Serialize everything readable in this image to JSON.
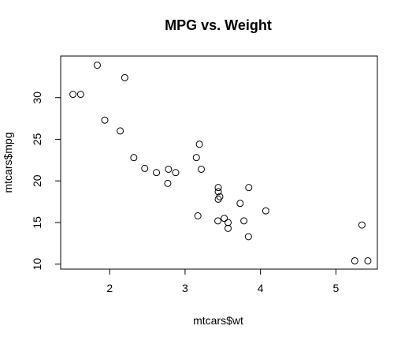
{
  "chart_data": {
    "type": "scatter",
    "title": "MPG vs. Weight",
    "xlabel": "mtcars$wt",
    "ylabel": "mtcars$mpg",
    "xlim": [
      1.35,
      5.55
    ],
    "ylim": [
      9.4,
      35.0
    ],
    "xticks": [
      2,
      3,
      4,
      5
    ],
    "yticks": [
      10,
      15,
      20,
      25,
      30
    ],
    "grid": false,
    "points": [
      {
        "x": 2.62,
        "y": 21.0
      },
      {
        "x": 2.875,
        "y": 21.0
      },
      {
        "x": 2.32,
        "y": 22.8
      },
      {
        "x": 3.215,
        "y": 21.4
      },
      {
        "x": 3.44,
        "y": 18.7
      },
      {
        "x": 3.46,
        "y": 18.1
      },
      {
        "x": 3.57,
        "y": 14.3
      },
      {
        "x": 3.19,
        "y": 24.4
      },
      {
        "x": 3.15,
        "y": 22.8
      },
      {
        "x": 3.44,
        "y": 19.2
      },
      {
        "x": 3.44,
        "y": 17.8
      },
      {
        "x": 4.07,
        "y": 16.4
      },
      {
        "x": 3.73,
        "y": 17.3
      },
      {
        "x": 3.78,
        "y": 15.2
      },
      {
        "x": 5.25,
        "y": 10.4
      },
      {
        "x": 5.424,
        "y": 10.4
      },
      {
        "x": 5.345,
        "y": 14.7
      },
      {
        "x": 2.2,
        "y": 32.4
      },
      {
        "x": 1.615,
        "y": 30.4
      },
      {
        "x": 1.835,
        "y": 33.9
      },
      {
        "x": 2.465,
        "y": 21.5
      },
      {
        "x": 3.52,
        "y": 15.5
      },
      {
        "x": 3.435,
        "y": 15.2
      },
      {
        "x": 3.84,
        "y": 13.3
      },
      {
        "x": 3.845,
        "y": 19.2
      },
      {
        "x": 1.935,
        "y": 27.3
      },
      {
        "x": 2.14,
        "y": 26.0
      },
      {
        "x": 1.513,
        "y": 30.4
      },
      {
        "x": 3.17,
        "y": 15.8
      },
      {
        "x": 2.77,
        "y": 19.7
      },
      {
        "x": 3.57,
        "y": 15.0
      },
      {
        "x": 2.78,
        "y": 21.4
      }
    ]
  }
}
